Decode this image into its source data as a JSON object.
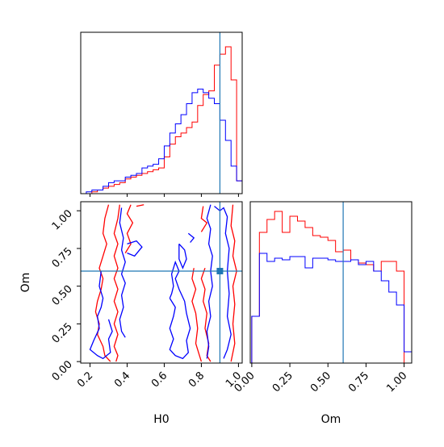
{
  "colors": {
    "run_a": "#ff0000",
    "run_b": "#0000ff",
    "truth": "#1f77b4",
    "axes": "#000000"
  },
  "chart_data": [
    {
      "type": "histogram",
      "panel": "hist-h0",
      "xlim": [
        0.15,
        1.02
      ],
      "bin_edges": [
        0.15,
        0.18,
        0.21,
        0.24,
        0.27,
        0.3,
        0.33,
        0.36,
        0.39,
        0.42,
        0.45,
        0.48,
        0.51,
        0.54,
        0.57,
        0.6,
        0.63,
        0.66,
        0.69,
        0.72,
        0.75,
        0.78,
        0.81,
        0.84,
        0.87,
        0.9,
        0.93,
        0.96,
        0.99,
        1.02
      ],
      "series": [
        {
          "color": "red",
          "values": [
            0,
            0,
            1,
            2,
            3,
            4,
            5,
            6,
            8,
            9,
            10,
            11,
            12,
            13,
            14,
            20,
            27,
            31,
            33,
            36,
            39,
            48,
            54,
            56,
            70,
            76,
            80,
            62,
            7
          ]
        },
        {
          "color": "blue",
          "values": [
            0,
            1,
            2,
            2,
            4,
            6,
            7,
            7,
            9,
            10,
            11,
            14,
            15,
            16,
            19,
            26,
            33,
            38,
            43,
            49,
            55,
            57,
            55,
            52,
            49,
            40,
            29,
            15,
            7
          ]
        }
      ],
      "truth": 0.9
    },
    {
      "type": "contour",
      "panel": "contour-h0-om",
      "xlabel": "H0",
      "ylabel": "Om",
      "xlim": [
        0.15,
        1.02
      ],
      "ylim": [
        -0.01,
        1.06
      ],
      "xticks": [
        "0.2",
        "0.4",
        "0.6",
        "0.8",
        "1.0"
      ],
      "yticks": [
        "0.00",
        "0.25",
        "0.50",
        "0.75",
        "1.00"
      ],
      "truth": [
        0.9,
        0.6
      ],
      "series": [
        {
          "color": "red",
          "paths": [
            [
              [
                0.3,
                1.04
              ],
              [
                0.28,
                0.95
              ],
              [
                0.27,
                0.85
              ],
              [
                0.29,
                0.78
              ],
              [
                0.27,
                0.7
              ],
              [
                0.25,
                0.62
              ],
              [
                0.27,
                0.55
              ],
              [
                0.26,
                0.48
              ],
              [
                0.24,
                0.4
              ],
              [
                0.23,
                0.33
              ],
              [
                0.25,
                0.25
              ],
              [
                0.24,
                0.18
              ],
              [
                0.27,
                0.1
              ],
              [
                0.28,
                0.04
              ],
              [
                0.31,
                0.0
              ]
            ],
            [
              [
                0.36,
                1.04
              ],
              [
                0.35,
                0.95
              ],
              [
                0.33,
                0.85
              ],
              [
                0.35,
                0.78
              ],
              [
                0.33,
                0.7
              ],
              [
                0.35,
                0.62
              ],
              [
                0.33,
                0.55
              ],
              [
                0.35,
                0.48
              ],
              [
                0.33,
                0.4
              ],
              [
                0.35,
                0.33
              ],
              [
                0.33,
                0.25
              ],
              [
                0.35,
                0.18
              ],
              [
                0.33,
                0.1
              ],
              [
                0.35,
                0.04
              ],
              [
                0.34,
                0.0
              ]
            ],
            [
              [
                0.42,
                1.04
              ],
              [
                0.4,
                0.98
              ],
              [
                0.43,
                0.92
              ],
              [
                0.4,
                0.85
              ],
              [
                0.42,
                0.78
              ],
              [
                0.39,
                0.72
              ]
            ],
            [
              [
                0.45,
                1.03
              ],
              [
                0.49,
                1.04
              ]
            ],
            [
              [
                0.81,
                1.03
              ],
              [
                0.8,
                0.95
              ],
              [
                0.83,
                0.92
              ],
              [
                0.8,
                0.86
              ]
            ],
            [
              [
                0.76,
                0.62
              ],
              [
                0.75,
                0.55
              ],
              [
                0.77,
                0.48
              ],
              [
                0.75,
                0.4
              ],
              [
                0.77,
                0.32
              ],
              [
                0.78,
                0.22
              ],
              [
                0.77,
                0.12
              ],
              [
                0.79,
                0.04
              ],
              [
                0.8,
                0.0
              ]
            ],
            [
              [
                0.82,
                0.62
              ],
              [
                0.8,
                0.55
              ],
              [
                0.82,
                0.48
              ],
              [
                0.81,
                0.4
              ],
              [
                0.83,
                0.32
              ],
              [
                0.82,
                0.22
              ],
              [
                0.84,
                0.12
              ],
              [
                0.83,
                0.04
              ],
              [
                0.85,
                0.0
              ]
            ],
            [
              [
                0.97,
                1.04
              ],
              [
                0.96,
                0.9
              ],
              [
                0.98,
                0.8
              ],
              [
                0.97,
                0.7
              ],
              [
                0.99,
                0.6
              ],
              [
                0.97,
                0.5
              ],
              [
                0.98,
                0.38
              ],
              [
                0.97,
                0.25
              ],
              [
                0.98,
                0.12
              ],
              [
                0.96,
                0.0
              ]
            ]
          ]
        },
        {
          "color": "blue",
          "paths": [
            [
              [
                0.26,
                0.6
              ],
              [
                0.25,
                0.5
              ],
              [
                0.27,
                0.42
              ],
              [
                0.26,
                0.36
              ],
              [
                0.24,
                0.3
              ],
              [
                0.25,
                0.22
              ],
              [
                0.22,
                0.14
              ],
              [
                0.2,
                0.08
              ],
              [
                0.24,
                0.04
              ],
              [
                0.27,
                0.02
              ],
              [
                0.31,
                0.06
              ],
              [
                0.3,
                0.15
              ],
              [
                0.32,
                0.2
              ],
              [
                0.3,
                0.28
              ]
            ],
            [
              [
                0.37,
                1.02
              ],
              [
                0.36,
                0.92
              ],
              [
                0.38,
                0.82
              ],
              [
                0.37,
                0.74
              ],
              [
                0.39,
                0.66
              ],
              [
                0.37,
                0.58
              ],
              [
                0.39,
                0.52
              ],
              [
                0.37,
                0.44
              ],
              [
                0.38,
                0.36
              ],
              [
                0.36,
                0.28
              ],
              [
                0.37,
                0.2
              ],
              [
                0.39,
                0.16
              ]
            ],
            [
              [
                0.4,
                0.78
              ],
              [
                0.45,
                0.8
              ],
              [
                0.48,
                0.76
              ],
              [
                0.44,
                0.7
              ],
              [
                0.4,
                0.72
              ]
            ],
            [
              [
                0.63,
                0.42
              ],
              [
                0.66,
                0.36
              ],
              [
                0.65,
                0.3
              ],
              [
                0.63,
                0.22
              ],
              [
                0.65,
                0.15
              ],
              [
                0.63,
                0.08
              ],
              [
                0.66,
                0.04
              ],
              [
                0.7,
                0.02
              ],
              [
                0.73,
                0.06
              ],
              [
                0.72,
                0.14
              ],
              [
                0.74,
                0.22
              ],
              [
                0.72,
                0.32
              ],
              [
                0.71,
                0.4
              ],
              [
                0.68,
                0.48
              ],
              [
                0.66,
                0.55
              ],
              [
                0.68,
                0.6
              ],
              [
                0.66,
                0.66
              ],
              [
                0.64,
                0.58
              ],
              [
                0.65,
                0.5
              ],
              [
                0.64,
                0.45
              ],
              [
                0.63,
                0.42
              ]
            ],
            [
              [
                0.85,
                1.04
              ],
              [
                0.83,
                0.95
              ],
              [
                0.85,
                0.88
              ],
              [
                0.84,
                0.78
              ],
              [
                0.86,
                0.7
              ],
              [
                0.85,
                0.6
              ],
              [
                0.86,
                0.5
              ],
              [
                0.84,
                0.4
              ],
              [
                0.85,
                0.3
              ],
              [
                0.83,
                0.2
              ],
              [
                0.84,
                0.1
              ],
              [
                0.83,
                0.02
              ]
            ],
            [
              [
                0.87,
                1.03
              ],
              [
                0.9,
                1.0
              ],
              [
                0.92,
                1.02
              ],
              [
                0.94,
                0.96
              ],
              [
                0.93,
                0.85
              ],
              [
                0.95,
                0.75
              ],
              [
                0.94,
                0.6
              ],
              [
                0.95,
                0.45
              ],
              [
                0.94,
                0.3
              ],
              [
                0.96,
                0.18
              ],
              [
                0.94,
                0.08
              ],
              [
                0.92,
                0.02
              ]
            ],
            [
              [
                0.68,
                0.78
              ],
              [
                0.71,
                0.74
              ],
              [
                0.72,
                0.68
              ],
              [
                0.7,
                0.62
              ],
              [
                0.68,
                0.68
              ],
              [
                0.68,
                0.78
              ]
            ],
            [
              [
                0.73,
                0.85
              ],
              [
                0.76,
                0.82
              ],
              [
                0.74,
                0.79
              ]
            ]
          ]
        }
      ]
    },
    {
      "type": "histogram",
      "panel": "hist-om",
      "xlabel": "Om",
      "xlim": [
        -0.01,
        1.05
      ],
      "xticks": [
        "0.00",
        "0.25",
        "0.50",
        "0.75",
        "1.00"
      ],
      "bin_edges": [
        0.0,
        0.05,
        0.1,
        0.15,
        0.2,
        0.25,
        0.3,
        0.35,
        0.4,
        0.45,
        0.5,
        0.55,
        0.6,
        0.65,
        0.7,
        0.75,
        0.8,
        0.85,
        0.9,
        0.95,
        1.0,
        1.05
      ],
      "series": [
        {
          "color": "red",
          "values": [
            29,
            81,
            89,
            94,
            81,
            91,
            88,
            84,
            79,
            78,
            76,
            69,
            70,
            64,
            62,
            61,
            57,
            63,
            63,
            57,
            0
          ]
        },
        {
          "color": "blue",
          "values": [
            29,
            68,
            63,
            65,
            64,
            66,
            66,
            59,
            65,
            65,
            64,
            63,
            63,
            64,
            61,
            63,
            57,
            51,
            44,
            36,
            7
          ]
        }
      ],
      "truth": 0.6
    }
  ]
}
